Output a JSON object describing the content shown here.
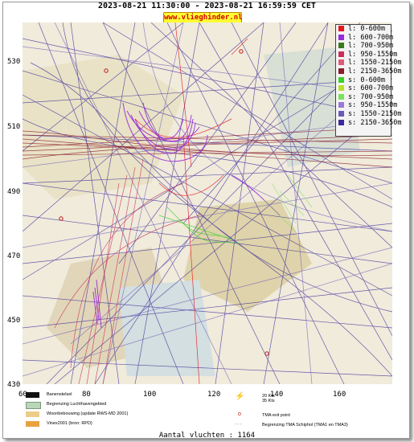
{
  "header": {
    "title": "2023-08-21 11:30:00 - 2023-08-21 16:59:59 CET",
    "site": "www.vlieghinder.nl"
  },
  "legend": {
    "items": [
      {
        "label": "l: 0-600m",
        "color": "#e8141e"
      },
      {
        "label": "l: 600-700m",
        "color": "#9a2bd8"
      },
      {
        "label": "l: 700-950m",
        "color": "#3a7a1a"
      },
      {
        "label": "l: 950-1550m",
        "color": "#c8305a"
      },
      {
        "label": "l: 1550-2150m",
        "color": "#e05a7a"
      },
      {
        "label": "l: 2150-3650m",
        "color": "#8a1b2a"
      },
      {
        "label": "s: 0-600m",
        "color": "#3ad12a"
      },
      {
        "label": "s: 600-700m",
        "color": "#b8e02a"
      },
      {
        "label": "s: 700-950m",
        "color": "#7ae25a"
      },
      {
        "label": "s: 950-1550m",
        "color": "#9a7ad8"
      },
      {
        "label": "s: 1550-2150m",
        "color": "#6a5ab8"
      },
      {
        "label": "s: 2150-3650m",
        "color": "#3a2a9a"
      }
    ]
  },
  "axes": {
    "y_ticks": [
      "530",
      "510",
      "490",
      "470",
      "450",
      "430"
    ],
    "x_ticks": [
      "60",
      "80",
      "100",
      "120",
      "140",
      "160"
    ]
  },
  "map_keys": {
    "runways": "Banenstelsel",
    "airport_boundary": "Begrenzing Luchthavengebied",
    "housing": "Woonbebouwing (update RWS-MD 2001)",
    "vinex": "Vinex2001 (bron: RPD)",
    "wind": "20 Kts\n35 Kts",
    "tma_exit": "TMA exit point",
    "tma_boundary": "Begrenzing TMA Schiphol  (TMA1 en TMA3)"
  },
  "footer": {
    "count": "Aantal vluchten : 1164"
  }
}
